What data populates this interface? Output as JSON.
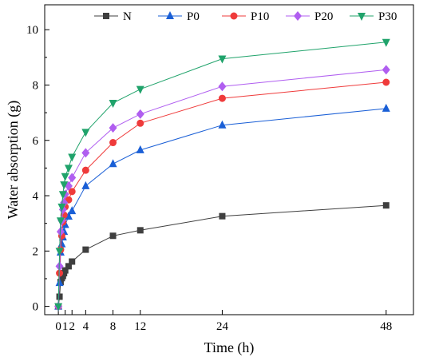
{
  "chart_data": {
    "type": "line",
    "title": "",
    "xlabel": "Time (h)",
    "ylabel": "Water absorption (g)",
    "xlim": [
      -2,
      52
    ],
    "ylim": [
      -0.3,
      10.9
    ],
    "x_ticks": [
      0,
      1,
      2,
      4,
      8,
      12,
      24,
      48
    ],
    "x_tick_labels": [
      "0",
      "1",
      "2",
      "4",
      "8",
      "12",
      "24",
      "48"
    ],
    "y_ticks": [
      0,
      2,
      4,
      6,
      8,
      10
    ],
    "y_tick_labels": [
      "0",
      "2",
      "4",
      "6",
      "8",
      "10"
    ],
    "grid": false,
    "legend_position": "top",
    "series": [
      {
        "name": "N",
        "color": "#3f3f3f",
        "marker": "square",
        "x": [
          0,
          0.17,
          0.33,
          0.5,
          0.67,
          0.83,
          1,
          1.5,
          2,
          4,
          8,
          12,
          24,
          48
        ],
        "y": [
          0,
          0.35,
          0.88,
          1.02,
          1.1,
          1.2,
          1.3,
          1.45,
          1.62,
          2.05,
          2.55,
          2.75,
          3.26,
          3.65
        ]
      },
      {
        "name": "P0",
        "color": "#1a5fd6",
        "marker": "triangle-up",
        "x": [
          0,
          0.17,
          0.33,
          0.5,
          0.67,
          0.83,
          1,
          1.5,
          2,
          4,
          8,
          12,
          24,
          48
        ],
        "y": [
          0,
          0.85,
          1.95,
          2.25,
          2.5,
          2.7,
          2.95,
          3.25,
          3.45,
          4.35,
          5.15,
          5.65,
          6.55,
          7.15
        ]
      },
      {
        "name": "P10",
        "color": "#ef3b3b",
        "marker": "circle",
        "x": [
          0,
          0.17,
          0.33,
          0.5,
          0.67,
          0.83,
          1,
          1.5,
          2,
          4,
          8,
          12,
          24,
          48
        ],
        "y": [
          0,
          1.2,
          2.05,
          2.55,
          3.05,
          3.3,
          3.6,
          3.85,
          4.15,
          4.92,
          5.92,
          6.62,
          7.52,
          8.1
        ]
      },
      {
        "name": "P20",
        "color": "#b05ef0",
        "marker": "diamond",
        "x": [
          0,
          0.17,
          0.33,
          0.5,
          0.67,
          0.83,
          1,
          1.5,
          2,
          4,
          8,
          12,
          24,
          48
        ],
        "y": [
          0,
          1.45,
          2.7,
          3.1,
          3.5,
          3.75,
          4.05,
          4.35,
          4.65,
          5.55,
          6.45,
          6.95,
          7.95,
          8.55
        ]
      },
      {
        "name": "P30",
        "color": "#20a36b",
        "marker": "triangle-down",
        "x": [
          0,
          0.17,
          0.33,
          0.5,
          0.67,
          0.83,
          1,
          1.5,
          2,
          4,
          8,
          12,
          24,
          48
        ],
        "y": [
          0,
          2.0,
          3.1,
          3.6,
          4.05,
          4.4,
          4.7,
          5.0,
          5.4,
          6.3,
          7.35,
          7.85,
          8.95,
          9.55
        ]
      }
    ]
  }
}
